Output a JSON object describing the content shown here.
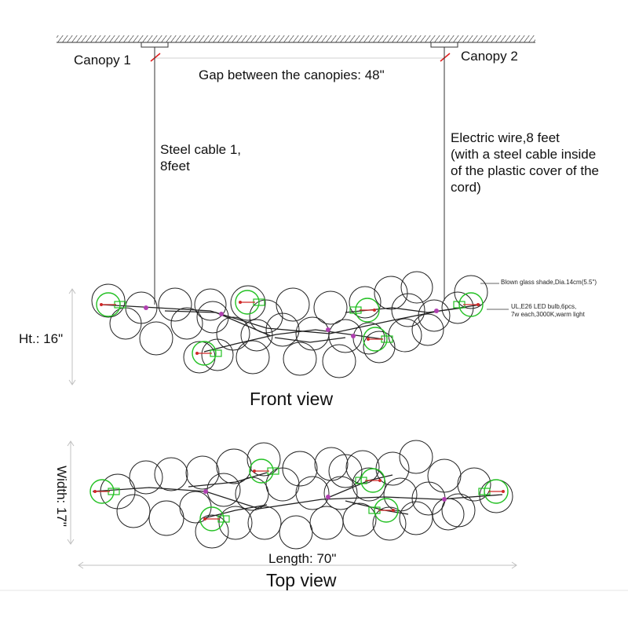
{
  "labels": {
    "canopy1": "Canopy 1",
    "canopy2": "Canopy 2",
    "gap": "Gap between the canopies: 48\"",
    "steel_cable": [
      "Steel cable 1,",
      "8feet"
    ],
    "electric_wire": [
      "Electric wire,8 feet",
      "(with a steel cable inside",
      "of the plastic cover of the",
      "cord)"
    ],
    "shade_note": "Blown glass shade,Dia.14cm(5.5\")",
    "bulb_note": [
      "UL,E26 LED bulb,6pcs,",
      "7w each,3000K,warm light"
    ],
    "height": "Ht.: 16\"",
    "front_view": "Front view",
    "width": "Width: 17\"",
    "length": "Length: 70\"",
    "top_view": "Top view"
  },
  "colors": {
    "line": "#222222",
    "measure": "#c0c0c0",
    "gap_line": "#e02020",
    "bulb": "#22c022",
    "filament": "#d02828",
    "connector": "#b040b0"
  }
}
